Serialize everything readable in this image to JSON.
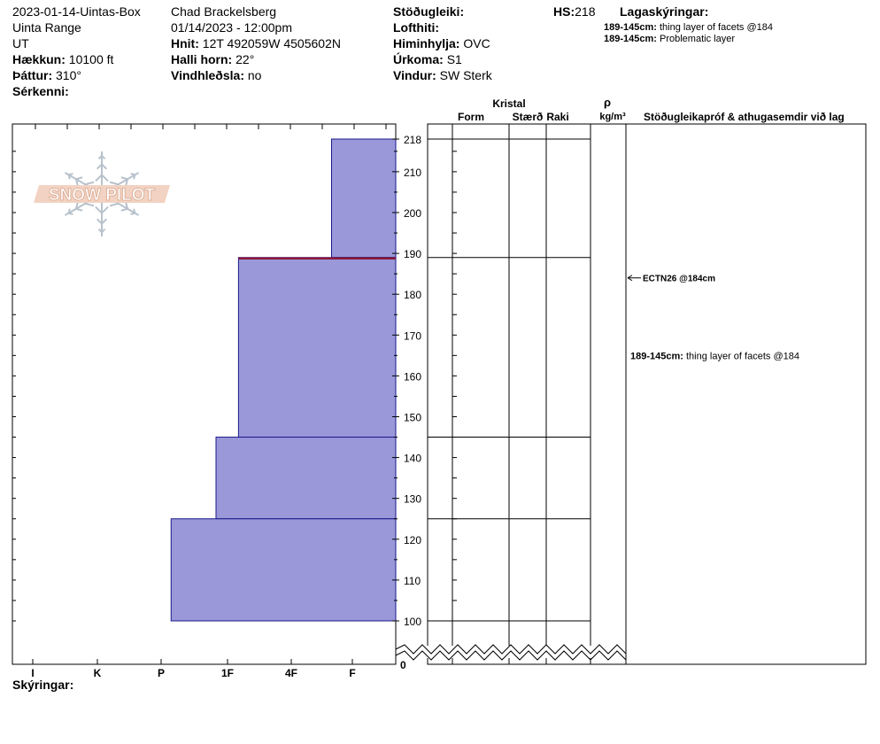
{
  "header": {
    "col1": {
      "pit_name": "2023-01-14-Uintas-Box",
      "range": "Uinta Range",
      "state": "UT",
      "elevation_label": "Hækkun:",
      "elevation_value": "10100 ft",
      "aspect_label": "Þáttur:",
      "aspect_value": "310°",
      "notes_label": "Sérkenni:"
    },
    "col2": {
      "observer": "Chad Brackelsberg",
      "datetime": "01/14/2023 - 12:00pm",
      "coords_label": "Hnit:",
      "coords_value": "12T 492059W 4505602N",
      "slope_label": "Halli horn:",
      "slope_value": "22°",
      "wind_loading_label": "Vindhleðsla:",
      "wind_loading_value": "no"
    },
    "col3": {
      "stability_label": "Stöðugleiki:",
      "air_temp_label": "Lofthiti:",
      "sky_label": "Himinhylja:",
      "sky_value": "OVC",
      "precip_label": "Úrkoma:",
      "precip_value": "S1",
      "wind_label": "Vindur:",
      "wind_value": "SW Sterk"
    },
    "hs_label": "HS:",
    "hs_value": "218",
    "layer_notes_title": "Lagaskýringar:",
    "layer_notes": [
      {
        "range": "189-145cm:",
        "text": "thing layer of facets @184"
      },
      {
        "range": "189-145cm:",
        "text": "Problematic layer"
      }
    ]
  },
  "logo_text": "SNOW PILOT",
  "crystal_header": {
    "group": "Kristal",
    "form": "Form",
    "size": "Stærð",
    "moisture": "Raki",
    "density_symbol": "ρ",
    "density_unit": "kg/m³",
    "tests_title": "Stöðugleikapróf & athugasemdir við lag"
  },
  "footer": {
    "legend_label": "Skýringar:"
  },
  "colors": {
    "layer_fill": "#9a98d8",
    "layer_stroke": "#1a1a8a",
    "problem_layer": "#8b1a3a"
  },
  "chart_data": {
    "type": "bar",
    "title": "",
    "xlabel": "",
    "ylabel": "",
    "y_axis": {
      "min": 100,
      "max": 218,
      "break_to": 0,
      "ticks": [
        100,
        110,
        120,
        130,
        140,
        150,
        160,
        170,
        180,
        190,
        200,
        210,
        218
      ]
    },
    "hardness_ticks": [
      "I",
      "K",
      "P",
      "1F",
      "4F",
      "F"
    ],
    "layers": [
      {
        "top": 218,
        "bottom": 189,
        "hardness": "F"
      },
      {
        "top": 189,
        "bottom": 145,
        "hardness": "4F+"
      },
      {
        "top": 145,
        "bottom": 125,
        "hardness": "1F+"
      },
      {
        "top": 125,
        "bottom": 100,
        "hardness": "1F-"
      }
    ],
    "hardness_index": {
      "F": 1,
      "4F+": 2.45,
      "1F+": 2.8,
      "1F-": 3.5
    },
    "layer_boundaries": [
      218,
      189,
      145,
      125,
      100
    ],
    "problem_layer_depth": 189,
    "tests": [
      {
        "depth": 184,
        "label": "ECTN26 @184cm"
      }
    ],
    "comments": [
      {
        "depth": 165,
        "range": "189-145cm:",
        "text": "thing layer of facets @184"
      }
    ]
  }
}
